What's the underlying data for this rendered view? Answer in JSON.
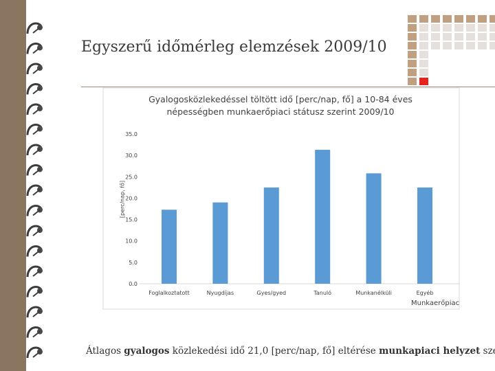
{
  "slide": {
    "title_main": "Egyszerű időmérleg elemzések",
    "title_year": "2009/10",
    "footer": {
      "p1": "Átlagos ",
      "p2": "gyalogos",
      "p3": " közlekedési idő 21,0 [perc/nap, fő] eltérése ",
      "p4": "munkapiaci helyzet",
      "p5": " szerint"
    },
    "colors": {
      "accent": "#e8211c",
      "grid_dark": "#c0a080",
      "grid_light": "#e6e0dc",
      "background": "#8a7560",
      "bar": "#5b9bd5"
    }
  },
  "chart_data": {
    "type": "bar",
    "title_line1": "Gyalogosközlekedéssel töltött idő [perc/nap, fő] a 10-84 éves",
    "title_line2": "népességben munkaerőpiaci státusz szerint 2009/10",
    "ylabel": "[perc/nap, fő]",
    "xlabel": "Munkaerőpiac",
    "categories": [
      "Foglalkoztatott",
      "Nyugdíjas",
      "Gyes/gyed",
      "Tanuló",
      "Munkanélküli",
      "Egyéb"
    ],
    "values": [
      17.3,
      19.0,
      22.5,
      31.3,
      25.8,
      22.5
    ],
    "ylim": [
      0,
      35
    ],
    "yticks": [
      "0.0",
      "5.0",
      "10.0",
      "15.0",
      "20.0",
      "25.0",
      "30.0",
      "35.0"
    ],
    "grid": false,
    "legend": "none"
  }
}
